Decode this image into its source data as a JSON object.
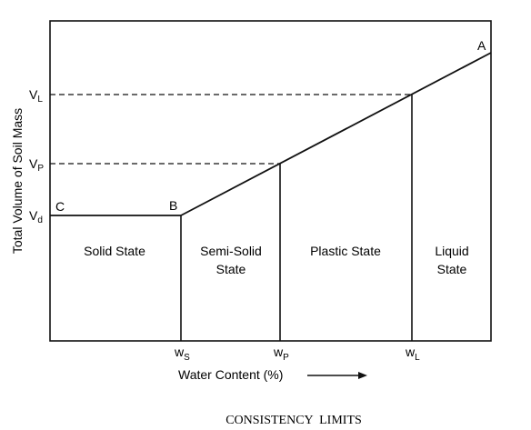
{
  "diagram": {
    "point_labels": {
      "a": "A",
      "b": "B",
      "c": "C"
    },
    "y_axis": {
      "label": "Total Volume of Soil Mass",
      "ticks": {
        "liquid": {
          "main": "V",
          "sub": "L"
        },
        "plastic": {
          "main": "V",
          "sub": "P"
        },
        "dry": {
          "main": "V",
          "sub": "d"
        }
      }
    },
    "x_axis": {
      "label": "Water Content (%)",
      "ticks": {
        "shrinkage": {
          "main": "w",
          "sub": "S"
        },
        "plastic": {
          "main": "w",
          "sub": "P"
        },
        "liquid": {
          "main": "w",
          "sub": "L"
        }
      }
    },
    "states": {
      "solid": {
        "line1": "Solid State"
      },
      "semi_solid": {
        "line1": "Semi-Solid",
        "line2": "State"
      },
      "plastic": {
        "line1": "Plastic State"
      },
      "liquid": {
        "line1": "Liquid",
        "line2": "State"
      }
    },
    "caption": "CONSISTENCY  LIMITS"
  }
}
